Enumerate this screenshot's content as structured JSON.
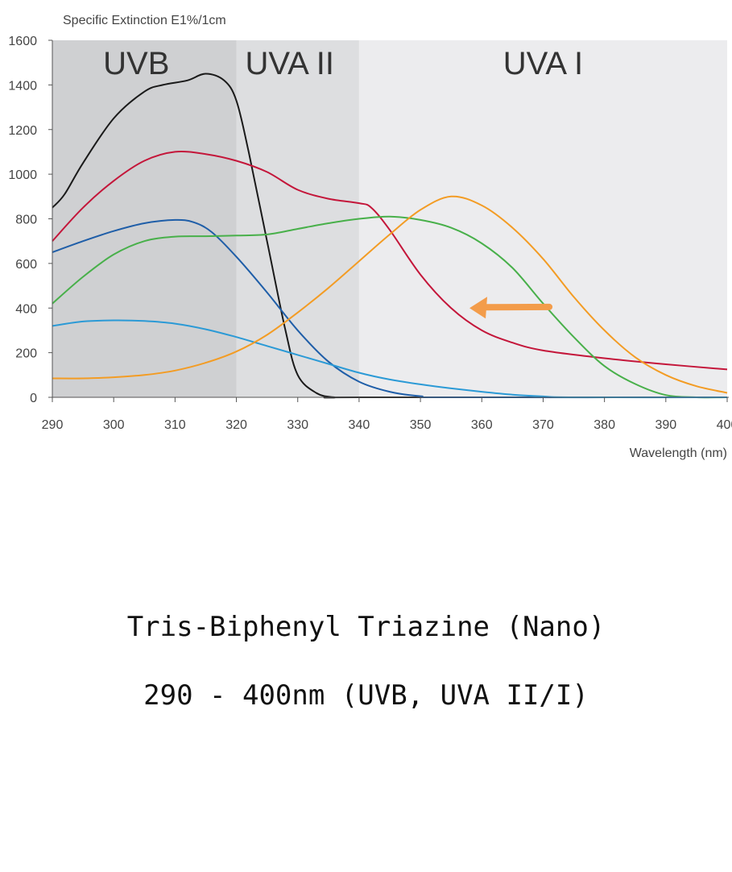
{
  "chart_data": {
    "type": "line",
    "ylabel": "Specific Extinction E1%/1cm",
    "xlabel": "Wavelength (nm)",
    "xlim": [
      290,
      400
    ],
    "ylim": [
      0,
      1600
    ],
    "x_ticks": [
      290,
      300,
      310,
      320,
      330,
      340,
      350,
      360,
      370,
      380,
      390,
      400
    ],
    "y_ticks": [
      0,
      200,
      400,
      600,
      800,
      1000,
      1200,
      1400,
      1600
    ],
    "bands": [
      {
        "label": "UVB",
        "from": 290,
        "to": 320,
        "color": "#cfd0d2"
      },
      {
        "label": "UVA II",
        "from": 320,
        "to": 340,
        "color": "#dddee0"
      },
      {
        "label": "UVA I",
        "from": 340,
        "to": 400,
        "color": "#ececee"
      }
    ],
    "series": [
      {
        "color": "#1a1a1a",
        "points": [
          [
            290,
            850
          ],
          [
            292,
            910
          ],
          [
            295,
            1050
          ],
          [
            300,
            1250
          ],
          [
            305,
            1370
          ],
          [
            308,
            1400
          ],
          [
            312,
            1420
          ],
          [
            315,
            1450
          ],
          [
            318,
            1420
          ],
          [
            320,
            1330
          ],
          [
            322,
            1100
          ],
          [
            325,
            700
          ],
          [
            328,
            300
          ],
          [
            330,
            100
          ],
          [
            333,
            20
          ],
          [
            336,
            0
          ],
          [
            340,
            0
          ],
          [
            400,
            0
          ]
        ]
      },
      {
        "color": "#c4163a",
        "points": [
          [
            290,
            700
          ],
          [
            295,
            850
          ],
          [
            300,
            970
          ],
          [
            305,
            1060
          ],
          [
            310,
            1100
          ],
          [
            315,
            1090
          ],
          [
            320,
            1060
          ],
          [
            325,
            1010
          ],
          [
            330,
            930
          ],
          [
            335,
            890
          ],
          [
            340,
            870
          ],
          [
            342,
            850
          ],
          [
            345,
            750
          ],
          [
            350,
            550
          ],
          [
            355,
            400
          ],
          [
            360,
            300
          ],
          [
            365,
            245
          ],
          [
            370,
            210
          ],
          [
            380,
            175
          ],
          [
            390,
            148
          ],
          [
            400,
            125
          ]
        ]
      },
      {
        "color": "#1f5ea8",
        "points": [
          [
            290,
            650
          ],
          [
            295,
            700
          ],
          [
            300,
            745
          ],
          [
            305,
            780
          ],
          [
            310,
            795
          ],
          [
            313,
            785
          ],
          [
            316,
            740
          ],
          [
            320,
            630
          ],
          [
            325,
            470
          ],
          [
            330,
            300
          ],
          [
            335,
            160
          ],
          [
            340,
            70
          ],
          [
            345,
            25
          ],
          [
            350,
            5
          ],
          [
            355,
            0
          ],
          [
            400,
            0
          ]
        ]
      },
      {
        "color": "#48b04a",
        "points": [
          [
            290,
            420
          ],
          [
            295,
            540
          ],
          [
            300,
            640
          ],
          [
            305,
            700
          ],
          [
            310,
            720
          ],
          [
            315,
            722
          ],
          [
            320,
            725
          ],
          [
            325,
            730
          ],
          [
            330,
            755
          ],
          [
            335,
            780
          ],
          [
            340,
            800
          ],
          [
            345,
            810
          ],
          [
            350,
            795
          ],
          [
            355,
            760
          ],
          [
            360,
            690
          ],
          [
            365,
            580
          ],
          [
            370,
            420
          ],
          [
            375,
            270
          ],
          [
            380,
            140
          ],
          [
            385,
            60
          ],
          [
            390,
            10
          ],
          [
            395,
            0
          ],
          [
            400,
            0
          ]
        ]
      },
      {
        "color": "#2b9ad6",
        "points": [
          [
            290,
            320
          ],
          [
            295,
            340
          ],
          [
            300,
            345
          ],
          [
            305,
            342
          ],
          [
            310,
            330
          ],
          [
            315,
            305
          ],
          [
            320,
            270
          ],
          [
            325,
            230
          ],
          [
            330,
            190
          ],
          [
            335,
            150
          ],
          [
            340,
            110
          ],
          [
            345,
            80
          ],
          [
            350,
            58
          ],
          [
            355,
            40
          ],
          [
            360,
            25
          ],
          [
            365,
            12
          ],
          [
            370,
            4
          ],
          [
            375,
            0
          ],
          [
            400,
            0
          ]
        ]
      },
      {
        "color": "#f39c24",
        "points": [
          [
            290,
            85
          ],
          [
            295,
            85
          ],
          [
            300,
            90
          ],
          [
            305,
            100
          ],
          [
            310,
            120
          ],
          [
            315,
            155
          ],
          [
            320,
            205
          ],
          [
            325,
            280
          ],
          [
            330,
            380
          ],
          [
            335,
            490
          ],
          [
            340,
            610
          ],
          [
            345,
            730
          ],
          [
            350,
            840
          ],
          [
            355,
            900
          ],
          [
            360,
            860
          ],
          [
            365,
            760
          ],
          [
            370,
            620
          ],
          [
            375,
            450
          ],
          [
            380,
            300
          ],
          [
            385,
            180
          ],
          [
            390,
            100
          ],
          [
            395,
            50
          ],
          [
            400,
            20
          ]
        ]
      }
    ],
    "arrow": {
      "color": "#f39c4a",
      "from": [
        371,
        405
      ],
      "to": [
        358,
        400
      ]
    }
  },
  "caption": {
    "title": "Tris-Biphenyl Triazine (Nano)",
    "range": "290 - 400nm (UVB, UVA II/I)"
  }
}
